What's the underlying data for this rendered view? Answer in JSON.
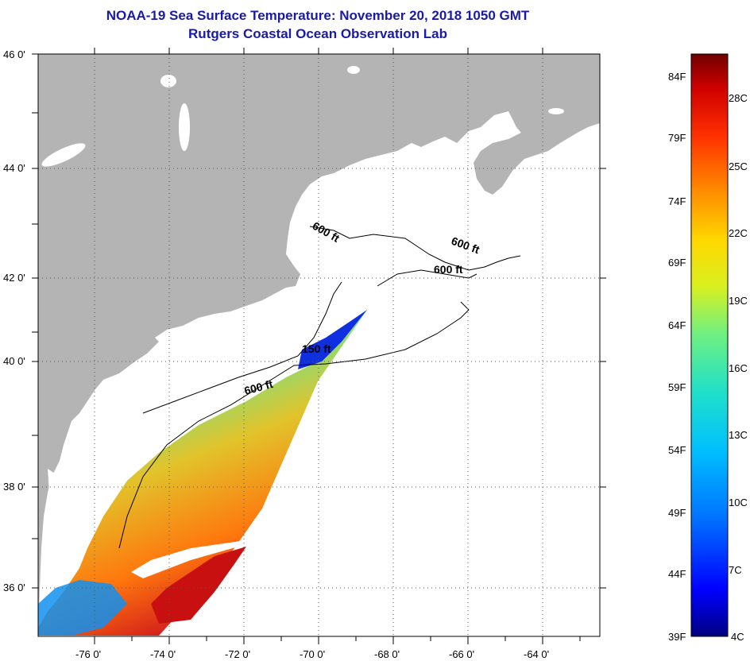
{
  "title": "NOAA-19 Sea Surface Temperature:  November 20, 2018 1050 GMT",
  "subtitle": "Rutgers Coastal Ocean Observation Lab",
  "map": {
    "lat_ticks": [
      "46 0'",
      "44 0'",
      "42 0'",
      "40 0'",
      "38 0'",
      "36 0'"
    ],
    "lon_ticks": [
      "-76 0'",
      "-74 0'",
      "-72 0'",
      "-70 0'",
      "-68 0'",
      "-66 0'",
      "-64 0'"
    ],
    "contour_labels": [
      "600 ft",
      "600 ft",
      "600 ft",
      "150 ft",
      "600 ft"
    ],
    "land_color": "#b4b4b4",
    "water_color": "#ffffff"
  },
  "colorbar": {
    "fahrenheit": [
      "84F",
      "79F",
      "74F",
      "69F",
      "64F",
      "59F",
      "54F",
      "49F",
      "44F",
      "39F"
    ],
    "celsius": [
      "28C",
      "25C",
      "22C",
      "19C",
      "16C",
      "13C",
      "10C",
      "7C",
      "4C"
    ],
    "colors": [
      "#000080",
      "#0000ff",
      "#0080ff",
      "#00c8ff",
      "#20e0c0",
      "#80f080",
      "#e0f020",
      "#ffd000",
      "#ff8000",
      "#ff2000",
      "#c00000",
      "#700000"
    ]
  }
}
